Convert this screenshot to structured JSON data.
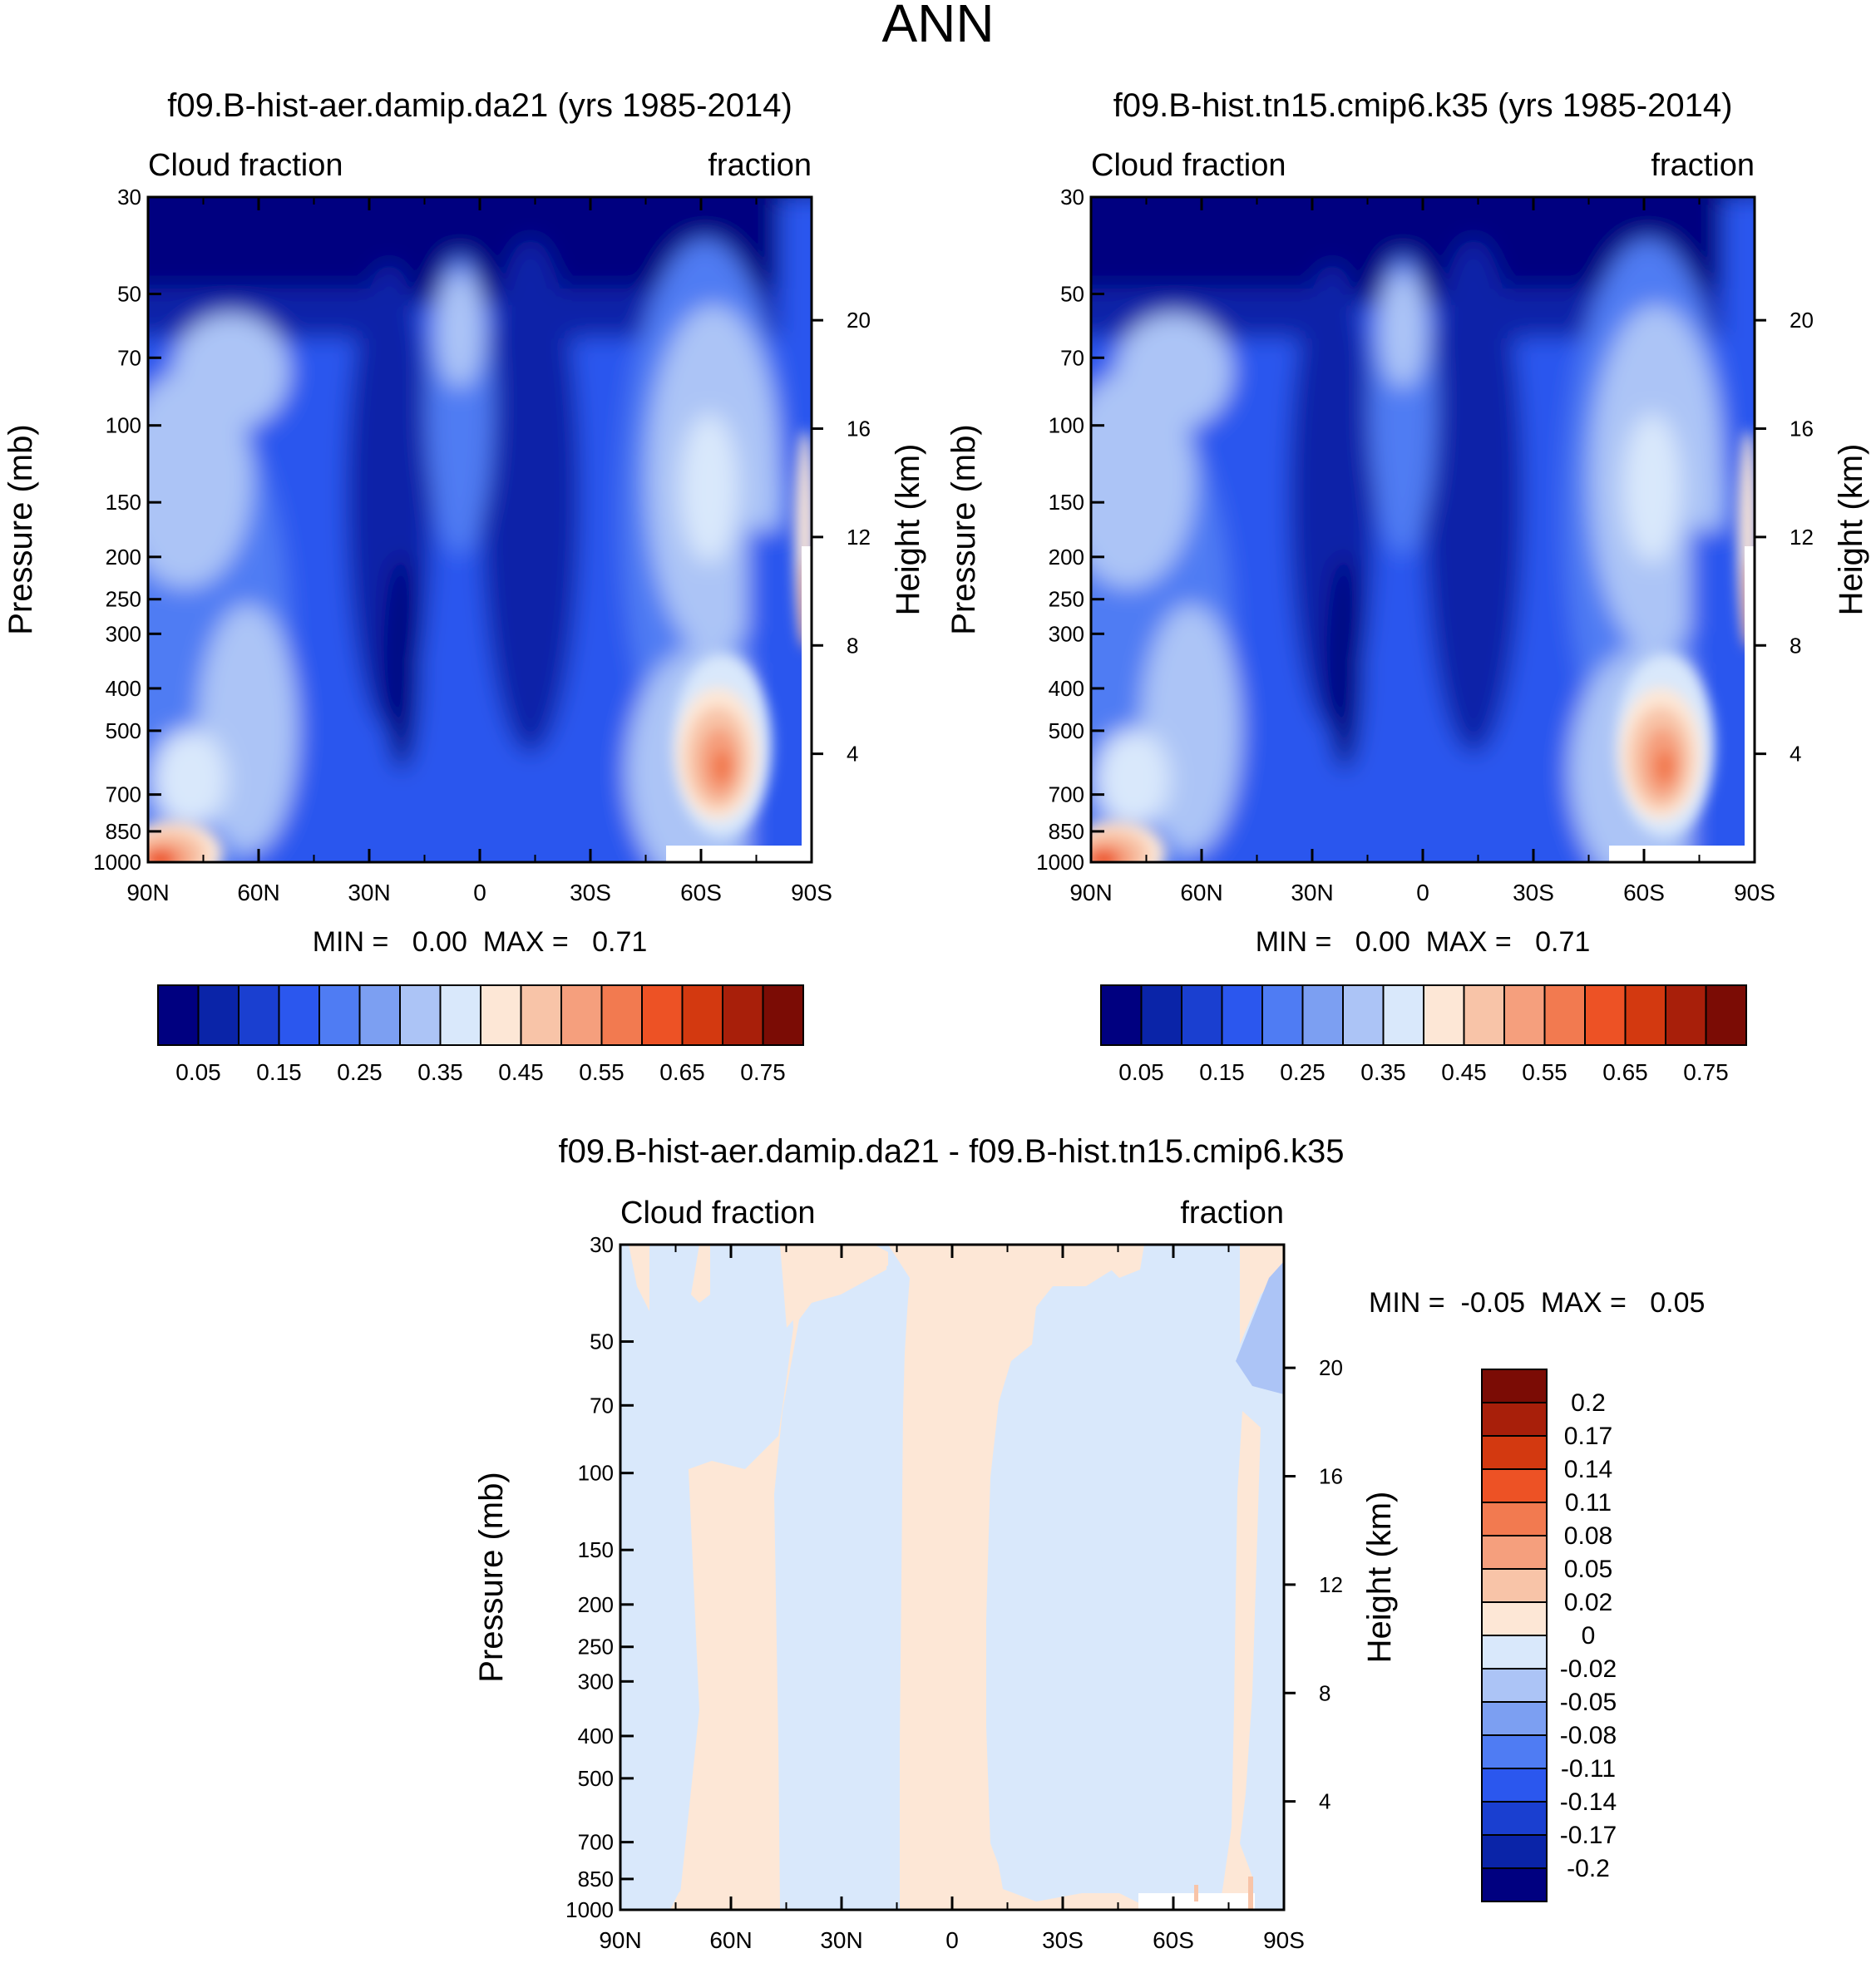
{
  "figure_title": "ANN",
  "chart_data": [
    {
      "type": "heatmap",
      "title": "f09.B-hist-aer.damip.da21 (yrs 1985-2014)",
      "left_label": "Cloud fraction",
      "right_label": "fraction",
      "ylabel": "Pressure (mb)",
      "ylabel_right": "Height (km)",
      "x_ticks": [
        "90N",
        "60N",
        "30N",
        "0",
        "30S",
        "60S",
        "90S"
      ],
      "xlim": [
        90,
        -90
      ],
      "y_ticks": [
        30,
        50,
        70,
        100,
        150,
        200,
        250,
        300,
        400,
        500,
        700,
        850,
        1000
      ],
      "ylim": [
        30,
        1000
      ],
      "height_ticks": [
        20,
        16,
        12,
        8,
        4
      ],
      "min_max": "MIN =   0.00  MAX =   0.71",
      "colorbar": {
        "orientation": "horizontal",
        "colors": [
          "#000080",
          "#0a24a8",
          "#1a3fd0",
          "#2b57ee",
          "#4f7cf3",
          "#7c9ff2",
          "#acc4f6",
          "#d9e8fb",
          "#fde7d6",
          "#f8c4a8",
          "#f59f7d",
          "#f27a50",
          "#ed5225",
          "#d33910",
          "#a81f0a",
          "#7b0c05"
        ],
        "labels": [
          "0.05",
          "0.15",
          "0.25",
          "0.35",
          "0.45",
          "0.55",
          "0.65",
          "0.75"
        ]
      }
    },
    {
      "type": "heatmap",
      "title": "f09.B-hist.tn15.cmip6.k35 (yrs 1985-2014)",
      "left_label": "Cloud fraction",
      "right_label": "fraction",
      "ylabel": "Pressure (mb)",
      "ylabel_right": "Height (km)",
      "x_ticks": [
        "90N",
        "60N",
        "30N",
        "0",
        "30S",
        "60S",
        "90S"
      ],
      "xlim": [
        90,
        -90
      ],
      "y_ticks": [
        30,
        50,
        70,
        100,
        150,
        200,
        250,
        300,
        400,
        500,
        700,
        850,
        1000
      ],
      "ylim": [
        30,
        1000
      ],
      "height_ticks": [
        20,
        16,
        12,
        8,
        4
      ],
      "min_max": "MIN =   0.00  MAX =   0.71",
      "colorbar": {
        "orientation": "horizontal",
        "colors": [
          "#000080",
          "#0a24a8",
          "#1a3fd0",
          "#2b57ee",
          "#4f7cf3",
          "#7c9ff2",
          "#acc4f6",
          "#d9e8fb",
          "#fde7d6",
          "#f8c4a8",
          "#f59f7d",
          "#f27a50",
          "#ed5225",
          "#d33910",
          "#a81f0a",
          "#7b0c05"
        ],
        "labels": [
          "0.05",
          "0.15",
          "0.25",
          "0.35",
          "0.45",
          "0.55",
          "0.65",
          "0.75"
        ]
      }
    },
    {
      "type": "heatmap",
      "title": "f09.B-hist-aer.damip.da21 - f09.B-hist.tn15.cmip6.k35",
      "left_label": "Cloud fraction",
      "right_label": "fraction",
      "ylabel": "Pressure (mb)",
      "ylabel_right": "Height (km)",
      "x_ticks": [
        "90N",
        "60N",
        "30N",
        "0",
        "30S",
        "60S",
        "90S"
      ],
      "xlim": [
        90,
        -90
      ],
      "y_ticks": [
        30,
        50,
        70,
        100,
        150,
        200,
        250,
        300,
        400,
        500,
        700,
        850,
        1000
      ],
      "ylim": [
        30,
        1000
      ],
      "height_ticks": [
        20,
        16,
        12,
        8,
        4
      ],
      "min_max": "MIN =  -0.05  MAX =   0.05",
      "colorbar": {
        "orientation": "vertical",
        "colors": [
          "#7b0c05",
          "#a81f0a",
          "#d33910",
          "#ed5225",
          "#f27a50",
          "#f59f7d",
          "#f8c4a8",
          "#fde7d6",
          "#d9e8fb",
          "#acc4f6",
          "#7c9ff2",
          "#4f7cf3",
          "#2b57ee",
          "#1a3fd0",
          "#0a24a8",
          "#000080"
        ],
        "labels": [
          "0.2",
          "0.17",
          "0.14",
          "0.11",
          "0.08",
          "0.05",
          "0.02",
          "0",
          "-0.02",
          "-0.05",
          "-0.08",
          "-0.11",
          "-0.14",
          "-0.17",
          "-0.2"
        ]
      }
    }
  ]
}
